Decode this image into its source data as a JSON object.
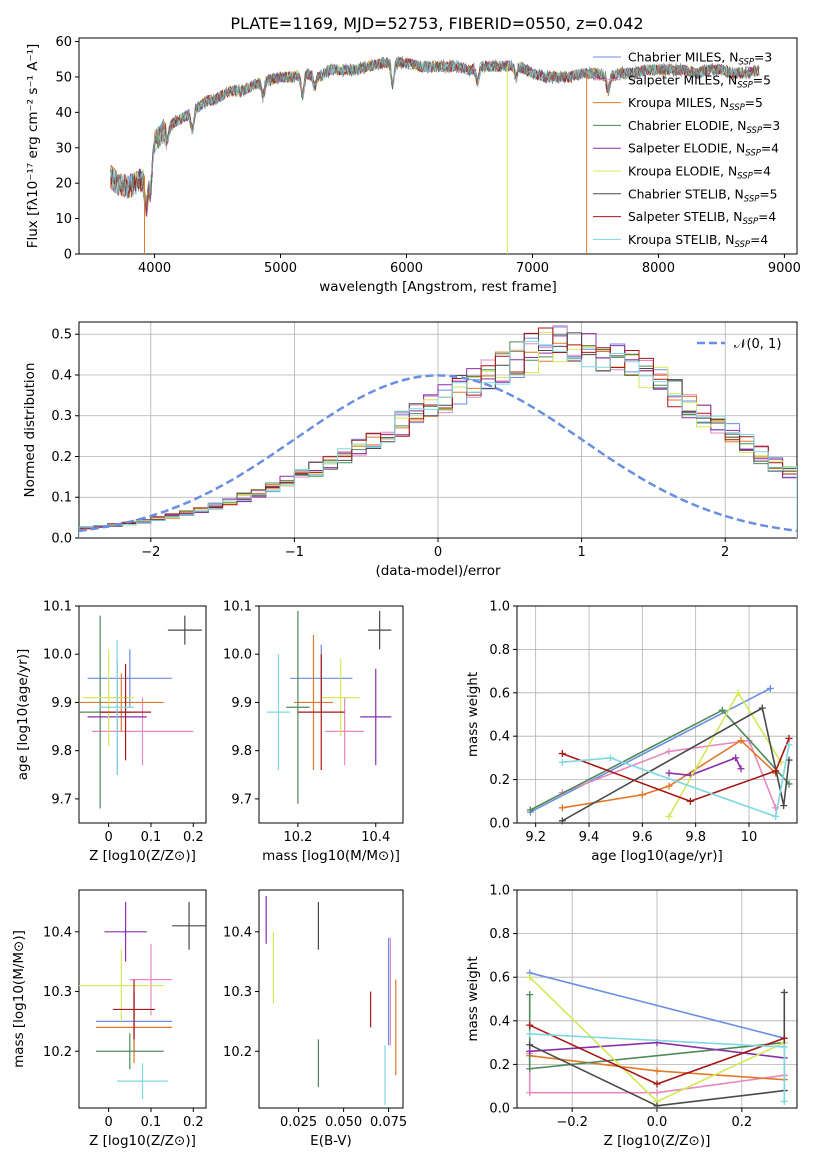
{
  "page_title": "PLATE=1169, MJD=52753, FIBERID=0550, z=0.042",
  "colors": {
    "chabrier_miles": "#6b8fe0",
    "salpeter_miles": "#e58ac1",
    "kroupa_miles": "#e07a2a",
    "chabrier_elodie": "#4f8a5b",
    "salpeter_elodie": "#8b2fa8",
    "kroupa_elodie": "#d4e85a",
    "chabrier_stelib": "#4a4a4a",
    "salpeter_stelib": "#a81818",
    "kroupa_stelib": "#7fd8e0",
    "normal_curve": "#6b8fe0"
  },
  "chart_data": [
    {
      "type": "line",
      "panel": "spectrum",
      "title": "PLATE=1169, MJD=52753, FIBERID=0550, z=0.042",
      "xlabel": "wavelength [Angstrom, rest frame]",
      "ylabel": "Flux [fλ10⁻¹⁷ erg cm⁻² s⁻¹ A⁻¹]",
      "xlim": [
        3400,
        9100
      ],
      "ylim": [
        0,
        61
      ],
      "xticks": [
        4000,
        5000,
        6000,
        7000,
        8000,
        9000
      ],
      "yticks": [
        0,
        10,
        20,
        30,
        40,
        50,
        60
      ],
      "legend_position": "upper right",
      "grid": false,
      "series": [
        {
          "name": "Chabrier MILES, N_SSP=3",
          "color_key": "chabrier_miles"
        },
        {
          "name": "Salpeter MILES, N_SSP=5",
          "color_key": "salpeter_miles"
        },
        {
          "name": "Kroupa MILES, N_SSP=5",
          "color_key": "kroupa_miles"
        },
        {
          "name": "Chabrier ELODIE, N_SSP=3",
          "color_key": "chabrier_elodie"
        },
        {
          "name": "Salpeter ELODIE, N_SSP=4",
          "color_key": "salpeter_elodie"
        },
        {
          "name": "Kroupa ELODIE, N_SSP=4",
          "color_key": "kroupa_elodie"
        },
        {
          "name": "Chabrier STELIB, N_SSP=5",
          "color_key": "chabrier_stelib"
        },
        {
          "name": "Salpeter STELIB, N_SSP=4",
          "color_key": "salpeter_stelib"
        },
        {
          "name": "Kroupa STELIB, N_SSP=4",
          "color_key": "kroupa_stelib"
        }
      ],
      "continuum": {
        "x": [
          3650,
          3700,
          3800,
          3900,
          3950,
          4000,
          4100,
          4200,
          4300,
          4400,
          4500,
          4600,
          4700,
          4800,
          4900,
          5000,
          5100,
          5200,
          5300,
          5400,
          5500,
          5600,
          5700,
          5800,
          5900,
          6000,
          6100,
          6200,
          6300,
          6400,
          6500,
          6600,
          6700,
          6800,
          6900,
          7000,
          7100,
          7200,
          7300,
          7400,
          7500,
          7600,
          7700,
          7800,
          7900,
          8000,
          8100,
          8200,
          8300,
          8400,
          8500,
          8600,
          8700,
          8800
        ],
        "y": [
          22,
          20,
          19,
          21,
          24,
          32,
          36,
          38,
          40,
          43,
          44,
          46,
          46,
          48,
          49,
          50,
          50,
          51,
          50,
          52,
          52,
          52,
          53,
          54,
          54,
          54,
          53,
          53,
          53,
          53,
          52,
          53,
          53,
          53,
          53,
          51,
          50,
          50,
          50,
          51,
          51,
          50,
          51,
          51,
          52,
          52,
          52,
          52,
          51,
          52,
          52,
          51,
          51,
          52
        ]
      },
      "dropouts": [
        {
          "x": 3920,
          "color_key": "kroupa_miles"
        },
        {
          "x": 6800,
          "color_key": "kroupa_elodie"
        },
        {
          "x": 7430,
          "color_key": "kroupa_miles"
        }
      ]
    },
    {
      "type": "histogram",
      "panel": "residuals",
      "xlabel": "(data-model)/error",
      "ylabel": "Normed distribution",
      "xlim": [
        -2.5,
        2.5
      ],
      "ylim": [
        0,
        0.53
      ],
      "xticks": [
        -2,
        -1,
        0,
        1,
        2
      ],
      "yticks": [
        0.0,
        0.1,
        0.2,
        0.3,
        0.4,
        0.5
      ],
      "grid": true,
      "bins": {
        "start": -2.5,
        "width": 0.1,
        "count": 50
      },
      "envelope": [
        0.025,
        0.028,
        0.032,
        0.036,
        0.041,
        0.047,
        0.054,
        0.061,
        0.07,
        0.079,
        0.089,
        0.1,
        0.112,
        0.125,
        0.139,
        0.154,
        0.169,
        0.186,
        0.203,
        0.22,
        0.24,
        0.26,
        0.28,
        0.3,
        0.32,
        0.34,
        0.36,
        0.38,
        0.4,
        0.42,
        0.44,
        0.455,
        0.465,
        0.47,
        0.47,
        0.465,
        0.455,
        0.44,
        0.42,
        0.4,
        0.38,
        0.355,
        0.33,
        0.305,
        0.28,
        0.255,
        0.23,
        0.205,
        0.18,
        0.16
      ],
      "legend": {
        "label": "𝒩(0, 1)",
        "position": "upper right"
      },
      "gaussian": {
        "mean": 0,
        "sigma": 1,
        "color_key": "normal_curve"
      }
    },
    {
      "type": "scatter",
      "panel": "age_vs_Z",
      "xlabel": "Z [log10(Z/Z⊙)]",
      "ylabel": "age  [log10(age/yr)]",
      "xlim": [
        -0.07,
        0.23
      ],
      "ylim": [
        9.65,
        10.1
      ],
      "xticks": [
        0.0,
        0.1,
        0.2
      ],
      "yticks": [
        9.7,
        9.8,
        9.9,
        10.0,
        10.1
      ],
      "points": [
        {
          "x": 0.05,
          "y": 9.95,
          "xerr": 0.1,
          "yerr": 0.06,
          "color_key": "chabrier_miles"
        },
        {
          "x": 0.08,
          "y": 9.84,
          "xerr": 0.12,
          "yerr": 0.07,
          "color_key": "salpeter_miles"
        },
        {
          "x": 0.03,
          "y": 9.9,
          "xerr": 0.1,
          "yerr": 0.06,
          "color_key": "kroupa_miles"
        },
        {
          "x": -0.02,
          "y": 9.88,
          "xerr": 0.08,
          "yerr": 0.2,
          "color_key": "chabrier_elodie"
        },
        {
          "x": 0.02,
          "y": 9.87,
          "xerr": 0.07,
          "yerr": 0.12,
          "color_key": "salpeter_elodie"
        },
        {
          "x": 0.0,
          "y": 9.91,
          "xerr": 0.06,
          "yerr": 0.1,
          "color_key": "kroupa_elodie"
        },
        {
          "x": 0.18,
          "y": 10.05,
          "xerr": 0.04,
          "yerr": 0.03,
          "color_key": "chabrier_stelib"
        },
        {
          "x": 0.04,
          "y": 9.88,
          "xerr": 0.06,
          "yerr": 0.1,
          "color_key": "salpeter_stelib"
        },
        {
          "x": 0.02,
          "y": 9.89,
          "xerr": 0.04,
          "yerr": 0.14,
          "color_key": "kroupa_stelib"
        }
      ]
    },
    {
      "type": "scatter",
      "panel": "age_vs_mass",
      "xlabel": "mass [log10(M/M⊙)]",
      "ylabel": "",
      "xlim": [
        10.1,
        10.47
      ],
      "ylim": [
        9.65,
        10.1
      ],
      "xticks": [
        10.2,
        10.4
      ],
      "yticks": [
        9.7,
        9.8,
        9.9,
        10.0,
        10.1
      ],
      "points": [
        {
          "x": 10.26,
          "y": 9.95,
          "xerr": 0.08,
          "yerr": 0.07,
          "color_key": "chabrier_miles"
        },
        {
          "x": 10.32,
          "y": 9.84,
          "xerr": 0.05,
          "yerr": 0.07,
          "color_key": "salpeter_miles"
        },
        {
          "x": 10.24,
          "y": 9.9,
          "xerr": 0.05,
          "yerr": 0.14,
          "color_key": "kroupa_miles"
        },
        {
          "x": 10.2,
          "y": 9.89,
          "xerr": 0.03,
          "yerr": 0.2,
          "color_key": "chabrier_elodie"
        },
        {
          "x": 10.4,
          "y": 9.87,
          "xerr": 0.04,
          "yerr": 0.1,
          "color_key": "salpeter_elodie"
        },
        {
          "x": 10.31,
          "y": 9.91,
          "xerr": 0.05,
          "yerr": 0.08,
          "color_key": "kroupa_elodie"
        },
        {
          "x": 10.41,
          "y": 10.05,
          "xerr": 0.03,
          "yerr": 0.04,
          "color_key": "chabrier_stelib"
        },
        {
          "x": 10.26,
          "y": 9.88,
          "xerr": 0.06,
          "yerr": 0.12,
          "color_key": "salpeter_stelib"
        },
        {
          "x": 10.15,
          "y": 9.88,
          "xerr": 0.03,
          "yerr": 0.12,
          "color_key": "kroupa_stelib"
        }
      ]
    },
    {
      "type": "line",
      "panel": "weight_vs_age",
      "xlabel": "age  [log10(age/yr)]",
      "ylabel": "mass weight",
      "xlim": [
        9.13,
        10.18
      ],
      "ylim": [
        0,
        1.0
      ],
      "xticks": [
        9.2,
        9.4,
        9.6,
        9.8,
        10.0
      ],
      "yticks": [
        0.0,
        0.2,
        0.4,
        0.6,
        0.8,
        1.0
      ],
      "grid": true,
      "series": [
        {
          "color_key": "chabrier_miles",
          "x": [
            9.18,
            10.08
          ],
          "y": [
            0.05,
            0.62
          ]
        },
        {
          "color_key": "salpeter_miles",
          "x": [
            9.3,
            9.7,
            10.0,
            10.1
          ],
          "y": [
            0.14,
            0.33,
            0.38,
            0.07
          ]
        },
        {
          "color_key": "kroupa_miles",
          "x": [
            9.3,
            9.6,
            9.7,
            9.97,
            10.1
          ],
          "y": [
            0.07,
            0.13,
            0.17,
            0.38,
            0.23
          ]
        },
        {
          "color_key": "chabrier_elodie",
          "x": [
            9.18,
            9.9,
            10.15
          ],
          "y": [
            0.06,
            0.52,
            0.18
          ]
        },
        {
          "color_key": "salpeter_elodie",
          "x": [
            9.7,
            9.78,
            9.95,
            9.97
          ],
          "y": [
            0.23,
            0.22,
            0.3,
            0.25
          ]
        },
        {
          "color_key": "kroupa_elodie",
          "x": [
            9.7,
            9.96,
            10.12
          ],
          "y": [
            0.03,
            0.6,
            0.28
          ]
        },
        {
          "color_key": "chabrier_stelib",
          "x": [
            9.3,
            10.05,
            10.13,
            10.15
          ],
          "y": [
            0.01,
            0.53,
            0.08,
            0.29
          ]
        },
        {
          "color_key": "salpeter_stelib",
          "x": [
            9.3,
            9.78,
            10.1,
            10.15
          ],
          "y": [
            0.32,
            0.1,
            0.24,
            0.39
          ]
        },
        {
          "color_key": "kroupa_stelib",
          "x": [
            9.3,
            9.48,
            10.1,
            10.15
          ],
          "y": [
            0.28,
            0.3,
            0.03,
            0.36
          ]
        }
      ]
    },
    {
      "type": "scatter",
      "panel": "mass_vs_Z",
      "xlabel": "Z [log10(Z/Z⊙)]",
      "ylabel": "mass [log10(M/M⊙)]",
      "xlim": [
        -0.07,
        0.23
      ],
      "ylim": [
        10.105,
        10.47
      ],
      "xticks": [
        0.0,
        0.1,
        0.2
      ],
      "yticks": [
        10.2,
        10.3,
        10.4
      ],
      "points": [
        {
          "x": 0.06,
          "y": 10.25,
          "xerr": 0.09,
          "yerr": 0.05,
          "color_key": "chabrier_miles"
        },
        {
          "x": 0.1,
          "y": 10.32,
          "xerr": 0.05,
          "yerr": 0.06,
          "color_key": "salpeter_miles"
        },
        {
          "x": 0.06,
          "y": 10.24,
          "xerr": 0.09,
          "yerr": 0.06,
          "color_key": "kroupa_miles"
        },
        {
          "x": 0.05,
          "y": 10.2,
          "xerr": 0.08,
          "yerr": 0.03,
          "color_key": "chabrier_elodie"
        },
        {
          "x": 0.04,
          "y": 10.4,
          "xerr": 0.05,
          "yerr": 0.05,
          "color_key": "salpeter_elodie"
        },
        {
          "x": 0.03,
          "y": 10.31,
          "xerr": 0.1,
          "yerr": 0.06,
          "color_key": "kroupa_elodie"
        },
        {
          "x": 0.19,
          "y": 10.41,
          "xerr": 0.04,
          "yerr": 0.04,
          "color_key": "chabrier_stelib"
        },
        {
          "x": 0.06,
          "y": 10.27,
          "xerr": 0.05,
          "yerr": 0.05,
          "color_key": "salpeter_stelib"
        },
        {
          "x": 0.08,
          "y": 10.15,
          "xerr": 0.06,
          "yerr": 0.03,
          "color_key": "kroupa_stelib"
        }
      ]
    },
    {
      "type": "scatter",
      "panel": "mass_vs_EBV",
      "xlabel": "E(B-V)",
      "ylabel": "",
      "xlim": [
        0.003,
        0.083
      ],
      "ylim": [
        10.105,
        10.47
      ],
      "xticks": [
        0.025,
        0.05,
        0.075
      ],
      "xtick_labels": [
        "0.025",
        "0.050",
        "0.075"
      ],
      "yticks": [
        10.2,
        10.3,
        10.4
      ],
      "points": [
        {
          "x": 0.075,
          "y": 10.3,
          "yerr": 0.09,
          "color_key": "chabrier_miles"
        },
        {
          "x": 0.076,
          "y": 10.3,
          "yerr": 0.09,
          "color_key": "salpeter_miles"
        },
        {
          "x": 0.079,
          "y": 10.24,
          "yerr": 0.08,
          "color_key": "kroupa_miles"
        },
        {
          "x": 0.036,
          "y": 10.18,
          "yerr": 0.04,
          "color_key": "chabrier_elodie"
        },
        {
          "x": 0.007,
          "y": 10.42,
          "yerr": 0.04,
          "color_key": "salpeter_elodie"
        },
        {
          "x": 0.011,
          "y": 10.34,
          "yerr": 0.06,
          "color_key": "kroupa_elodie"
        },
        {
          "x": 0.036,
          "y": 10.41,
          "yerr": 0.04,
          "color_key": "chabrier_stelib"
        },
        {
          "x": 0.065,
          "y": 10.27,
          "yerr": 0.03,
          "color_key": "salpeter_stelib"
        },
        {
          "x": 0.073,
          "y": 10.16,
          "yerr": 0.05,
          "color_key": "kroupa_stelib"
        }
      ]
    },
    {
      "type": "line",
      "panel": "weight_vs_Z",
      "xlabel": "Z [log10(Z/Z⊙)]",
      "ylabel": "mass weight",
      "xlim": [
        -0.33,
        0.33
      ],
      "ylim": [
        0,
        1.0
      ],
      "xticks": [
        -0.2,
        0.0,
        0.2
      ],
      "xtick_labels": [
        "−0.2",
        "0.0",
        "0.2"
      ],
      "yticks": [
        0.0,
        0.2,
        0.4,
        0.6,
        0.8,
        1.0
      ],
      "grid": true,
      "series": [
        {
          "color_key": "chabrier_miles",
          "x": [
            -0.3,
            0.3
          ],
          "y": [
            0.62,
            0.32
          ]
        },
        {
          "color_key": "salpeter_miles",
          "x": [
            -0.3,
            -0.3,
            0.0,
            0.3
          ],
          "y": [
            0.25,
            0.07,
            0.07,
            0.15
          ]
        },
        {
          "color_key": "kroupa_miles",
          "x": [
            -0.3,
            0.0,
            0.3
          ],
          "y": [
            0.24,
            0.17,
            0.13
          ]
        },
        {
          "color_key": "chabrier_elodie",
          "x": [
            -0.3,
            -0.3,
            0.3
          ],
          "y": [
            0.52,
            0.18,
            0.3
          ]
        },
        {
          "color_key": "salpeter_elodie",
          "x": [
            -0.3,
            0.0,
            0.3
          ],
          "y": [
            0.26,
            0.3,
            0.23
          ]
        },
        {
          "color_key": "kroupa_elodie",
          "x": [
            -0.3,
            0.0,
            0.3
          ],
          "y": [
            0.6,
            0.03,
            0.3
          ]
        },
        {
          "color_key": "chabrier_stelib",
          "x": [
            -0.3,
            0.0,
            0.3,
            0.3
          ],
          "y": [
            0.29,
            0.01,
            0.08,
            0.53
          ]
        },
        {
          "color_key": "salpeter_stelib",
          "x": [
            -0.3,
            0.0,
            0.3
          ],
          "y": [
            0.38,
            0.11,
            0.32
          ]
        },
        {
          "color_key": "kroupa_stelib",
          "x": [
            -0.3,
            0.3,
            0.3
          ],
          "y": [
            0.34,
            0.28,
            0.03
          ]
        }
      ]
    }
  ]
}
